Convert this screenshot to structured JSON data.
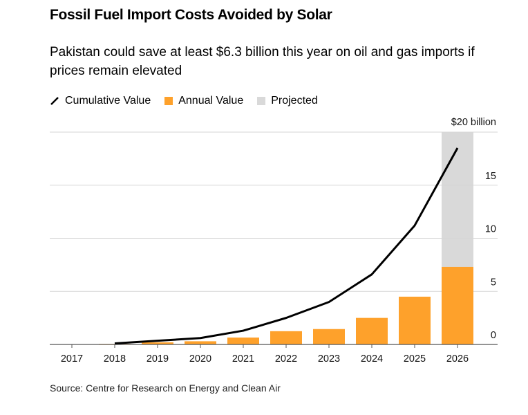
{
  "title": "Fossil Fuel Import Costs Avoided by Solar",
  "subtitle": "Pakistan could save at least $6.3 billion this year on oil and gas imports if prices remain elevated",
  "source": "Source: Centre for Research on Energy and Clean Air",
  "legend": [
    {
      "label": "Cumulative Value",
      "type": "line",
      "color": "#000000"
    },
    {
      "label": "Annual Value",
      "type": "bar",
      "color": "#fea12b"
    },
    {
      "label": "Projected",
      "type": "shade",
      "color": "#d9d9d9"
    }
  ],
  "chart_data": {
    "type": "bar",
    "categories": [
      "2017",
      "2018",
      "2019",
      "2020",
      "2021",
      "2022",
      "2023",
      "2024",
      "2025",
      "2026"
    ],
    "series": [
      {
        "name": "Annual Value",
        "type": "bar",
        "values": [
          0,
          0.05,
          0.2,
          0.3,
          0.65,
          1.25,
          1.45,
          2.5,
          4.5,
          7.3
        ]
      },
      {
        "name": "Cumulative Value",
        "type": "line",
        "values": [
          null,
          0.1,
          0.35,
          0.6,
          1.3,
          2.5,
          4.0,
          6.6,
          11.2,
          18.5
        ]
      }
    ],
    "projected_categories": [
      "2026"
    ],
    "yticks": [
      0,
      5,
      10,
      15,
      20
    ],
    "ytick_labels": [
      "0",
      "5",
      "10",
      "15",
      "$20 billion"
    ],
    "ylim": [
      0,
      20
    ],
    "yaxis_position": "right",
    "grid": true,
    "legend_position": "top-left"
  }
}
